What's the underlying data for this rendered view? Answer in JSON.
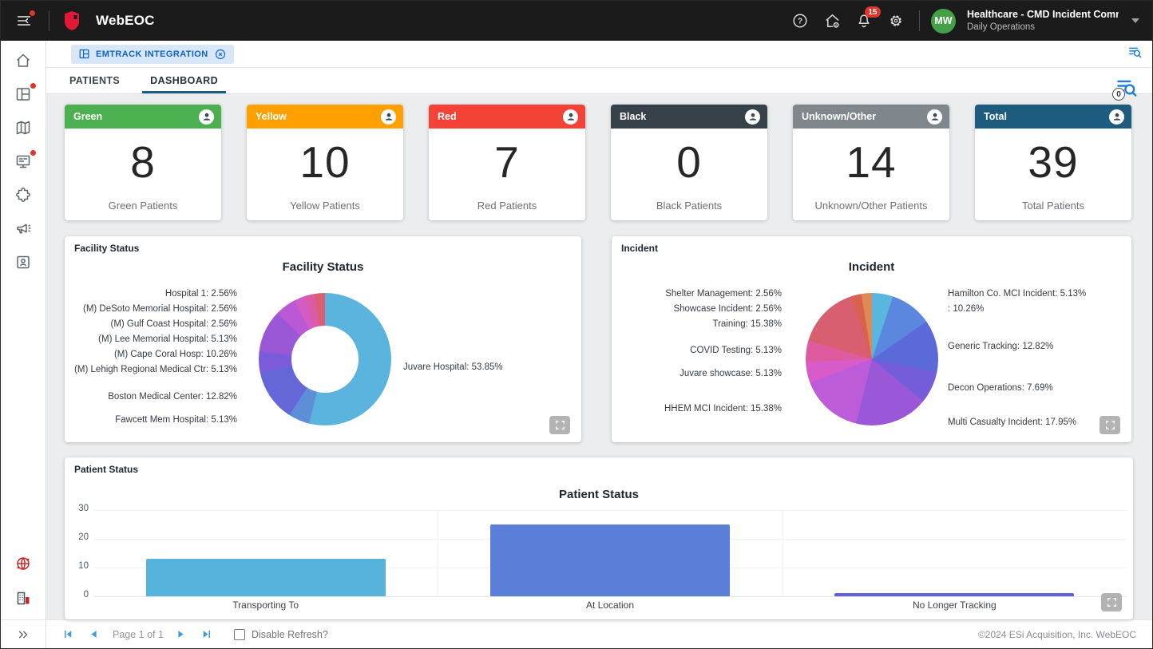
{
  "topbar": {
    "app_name": "WebEOC",
    "notification_count": "15",
    "user_initials": "MW",
    "incident_name": "Healthcare - CMD Incident Comma…",
    "position_name": "Daily Operations",
    "avatar_color": "#43a047",
    "badge_color": "#e0352b"
  },
  "board_tab": {
    "label": "EMTRACK INTEGRATION"
  },
  "tabs": [
    {
      "label": "PATIENTS",
      "active": false
    },
    {
      "label": "DASHBOARD",
      "active": true
    }
  ],
  "filters": {
    "count": "0"
  },
  "summary_cards": [
    {
      "title": "Green",
      "value": "8",
      "label": "Green Patients",
      "color": "#4caf50"
    },
    {
      "title": "Yellow",
      "value": "10",
      "label": "Yellow Patients",
      "color": "#ffa000"
    },
    {
      "title": "Red",
      "value": "7",
      "label": "Red Patients",
      "color": "#f44336"
    },
    {
      "title": "Black",
      "value": "0",
      "label": "Black Patients",
      "color": "#37414a"
    },
    {
      "title": "Unknown/Other",
      "value": "14",
      "label": "Unknown/Other Patients",
      "color": "#7f878d"
    },
    {
      "title": "Total",
      "value": "39",
      "label": "Total Patients",
      "color": "#1d5c7f"
    }
  ],
  "chart_data": [
    {
      "type": "pie",
      "panel_label": "Facility Status",
      "title": "Facility Status",
      "donut": true,
      "legend_position": "callout-labels",
      "slices": [
        {
          "label": "Juvare Hospital",
          "value": 53.85,
          "pct": "53.85%",
          "color": "#5bb4dd"
        },
        {
          "label": "Fawcett Mem Hospital",
          "value": 5.13,
          "pct": "5.13%",
          "color": "#5f8ed9"
        },
        {
          "label": "Boston Medical Center",
          "value": 12.82,
          "pct": "12.82%",
          "color": "#6567d9"
        },
        {
          "label": "(M) Lehigh Regional Medical Ctr",
          "value": 5.13,
          "pct": "5.13%",
          "color": "#7b5bd9"
        },
        {
          "label": "(M) Cape Coral Hosp",
          "value": 10.26,
          "pct": "10.26%",
          "color": "#9b58d6"
        },
        {
          "label": "(M) Lee Memorial Hospital",
          "value": 5.13,
          "pct": "5.13%",
          "color": "#bb58d6"
        },
        {
          "label": "(M) Gulf Coast Hospital",
          "value": 2.56,
          "pct": "2.56%",
          "color": "#d35bc6"
        },
        {
          "label": "(M) DeSoto Memorial Hospital",
          "value": 2.56,
          "pct": "2.56%",
          "color": "#dc5ba6"
        },
        {
          "label": "Hospital 1",
          "value": 2.56,
          "pct": "2.56%",
          "color": "#d95f74"
        }
      ]
    },
    {
      "type": "pie",
      "panel_label": "Incident",
      "title": "Incident",
      "donut": false,
      "legend_position": "callout-labels",
      "slices": [
        {
          "label": "Hamilton Co. MCI Incident",
          "value": 5.13,
          "pct": "5.13%",
          "color": "#58b6df"
        },
        {
          "label": "",
          "value": 10.26,
          "pct": "10.26%",
          "color": "#5c87df"
        },
        {
          "label": "Generic Tracking",
          "value": 12.82,
          "pct": "12.82%",
          "color": "#5b6ad9"
        },
        {
          "label": "Decon Operations",
          "value": 7.69,
          "pct": "7.69%",
          "color": "#755cd9"
        },
        {
          "label": "Multi Casualty Incident",
          "value": 17.95,
          "pct": "17.95%",
          "color": "#9a58d8"
        },
        {
          "label": "HHEM MCI Incident",
          "value": 15.38,
          "pct": "15.38%",
          "color": "#bc5cd8"
        },
        {
          "label": "Juvare showcase",
          "value": 5.13,
          "pct": "5.13%",
          "color": "#d75bc8"
        },
        {
          "label": "COVID Testing",
          "value": 5.13,
          "pct": "5.13%",
          "color": "#dd5b9e"
        },
        {
          "label": "Training",
          "value": 15.38,
          "pct": "15.38%",
          "color": "#d85f70"
        },
        {
          "label": "Showcase Incident",
          "value": 2.56,
          "pct": "2.56%",
          "color": "#d8614f"
        },
        {
          "label": "Shelter Management",
          "value": 2.56,
          "pct": "2.56%",
          "color": "#df8a55"
        }
      ]
    },
    {
      "type": "bar",
      "panel_label": "Patient Status",
      "title": "Patient Status",
      "categories": [
        "Transporting To",
        "At Location",
        "No Longer Tracking"
      ],
      "values": [
        13,
        25,
        1
      ],
      "colors": [
        "#56b3dc",
        "#5b7fd9",
        "#6461d8"
      ],
      "xlabel": "",
      "ylabel": "",
      "ylim": [
        0,
        30
      ],
      "yticks": [
        0,
        10,
        20,
        30
      ],
      "grid": true
    }
  ],
  "pagination": {
    "page_text": "Page 1 of 1",
    "disable_refresh_label": "Disable Refresh?"
  },
  "footer": {
    "copyright": "©2024 ESi Acquisition, Inc. WebEOC"
  }
}
